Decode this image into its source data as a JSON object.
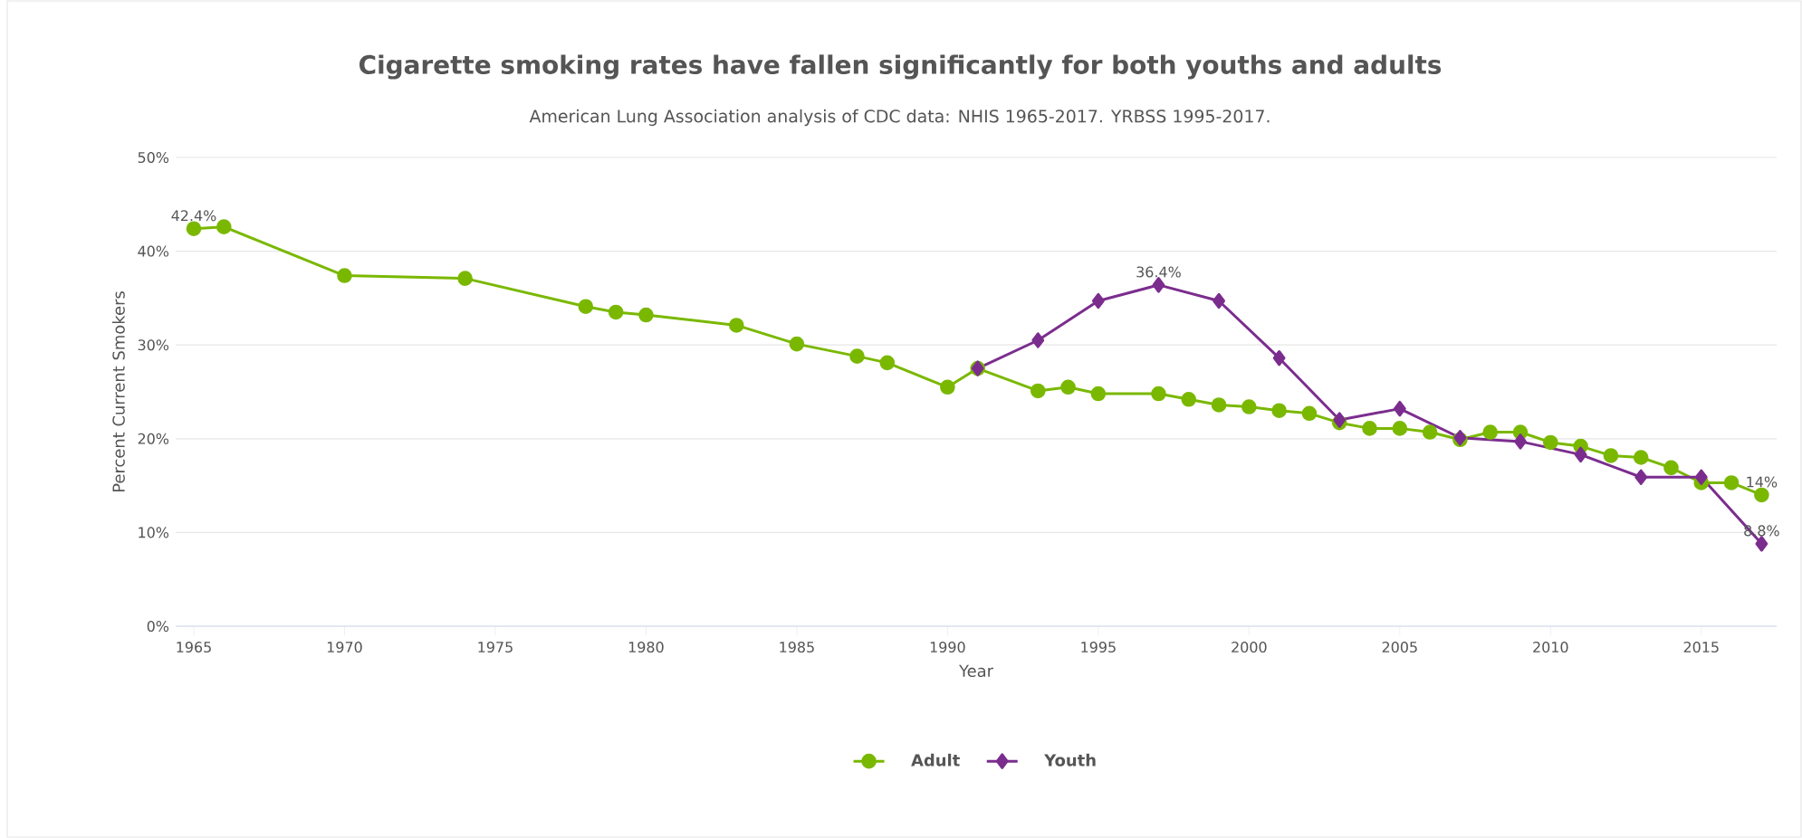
{
  "chart_data": {
    "type": "line",
    "title": "Cigarette smoking rates have fallen significantly for both youths and adults",
    "subtitle": "American Lung Association analysis of CDC data: NHIS 1965-2017. YRBSS 1995-2017.",
    "xlabel": "Year",
    "ylabel": "Percent Current Smokers",
    "xlim": [
      1964.4,
      2017.5
    ],
    "xticks": [
      1965,
      1970,
      1975,
      1980,
      1985,
      1990,
      1995,
      2000,
      2005,
      2010,
      2015
    ],
    "ylim": [
      0,
      50
    ],
    "yticks": [
      {
        "value": 0,
        "label": "0%"
      },
      {
        "value": 10,
        "label": "10%"
      },
      {
        "value": 20,
        "label": "20%"
      },
      {
        "value": 30,
        "label": "30%"
      },
      {
        "value": 40,
        "label": "40%"
      },
      {
        "value": 50,
        "label": "50%"
      }
    ],
    "grid": "y",
    "legend": "bottom",
    "line_style": "solid",
    "series": [
      {
        "name": "Adult",
        "color": "#7ab800",
        "marker": "circle",
        "x": [
          1965,
          1966,
          1970,
          1974,
          1978,
          1979,
          1980,
          1983,
          1985,
          1987,
          1988,
          1990,
          1991,
          1993,
          1994,
          1995,
          1997,
          1998,
          1999,
          2000,
          2001,
          2002,
          2003,
          2004,
          2005,
          2006,
          2007,
          2008,
          2009,
          2010,
          2011,
          2012,
          2013,
          2014,
          2015,
          2016,
          2017
        ],
        "values": [
          42.4,
          42.6,
          37.4,
          37.1,
          34.1,
          33.5,
          33.2,
          32.1,
          30.1,
          28.8,
          28.1,
          25.5,
          27.5,
          25.1,
          25.5,
          24.8,
          24.8,
          24.2,
          23.6,
          23.4,
          23.0,
          22.7,
          21.7,
          21.1,
          21.1,
          20.7,
          19.9,
          20.7,
          20.7,
          19.6,
          19.2,
          18.2,
          18.0,
          16.9,
          15.3,
          15.3,
          14
        ],
        "value_labels": [
          "42.4%",
          null,
          null,
          null,
          null,
          null,
          null,
          null,
          null,
          null,
          null,
          null,
          null,
          null,
          null,
          null,
          null,
          null,
          null,
          null,
          null,
          null,
          null,
          null,
          null,
          null,
          null,
          null,
          null,
          null,
          null,
          null,
          null,
          null,
          null,
          null,
          "14%"
        ]
      },
      {
        "name": "Youth",
        "color": "#7b2d8e",
        "marker": "diamond",
        "x": [
          1991,
          1993,
          1995,
          1997,
          1999,
          2001,
          2003,
          2005,
          2007,
          2009,
          2011,
          2013,
          2015,
          2017
        ],
        "values": [
          27.5,
          30.5,
          34.7,
          36.4,
          34.7,
          28.6,
          22.0,
          23.2,
          20.1,
          19.7,
          18.3,
          15.9,
          15.9,
          8.8
        ],
        "value_labels": [
          null,
          null,
          null,
          "36.4%",
          null,
          null,
          null,
          null,
          null,
          null,
          null,
          null,
          null,
          "8.8%"
        ]
      }
    ]
  }
}
